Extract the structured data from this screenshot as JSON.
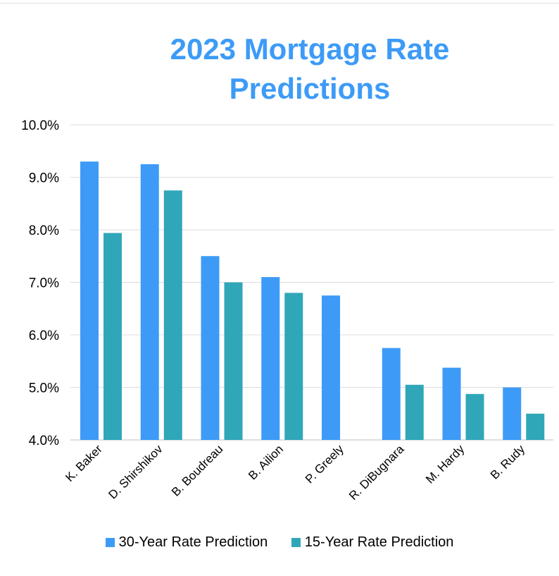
{
  "chart_data": {
    "type": "bar",
    "title_lines": [
      "2023 Mortgage Rate",
      "Predictions"
    ],
    "categories": [
      "K. Baker",
      "D. Shirshikov",
      "B. Boudreau",
      "B. Ailion",
      "P. Greely",
      "R. DiBugnara",
      "M. Hardy",
      "B. Rudy"
    ],
    "series": [
      {
        "name": "30-Year Rate Prediction",
        "color": "#3d9bf7",
        "values": [
          9.3,
          9.25,
          7.5,
          7.1,
          6.75,
          5.75,
          5.375,
          5.0
        ]
      },
      {
        "name": "15-Year Rate Prediction",
        "color": "#30a7b8",
        "values": [
          7.94,
          8.75,
          7.0,
          6.8,
          null,
          5.05,
          4.875,
          4.5
        ]
      }
    ],
    "ylim": [
      4.0,
      10.0
    ],
    "yticks": [
      "4.0%",
      "5.0%",
      "6.0%",
      "7.0%",
      "8.0%",
      "9.0%",
      "10.0%"
    ],
    "ytick_values": [
      4,
      5,
      6,
      7,
      8,
      9,
      10
    ],
    "grid": true,
    "legend_position": "bottom"
  }
}
